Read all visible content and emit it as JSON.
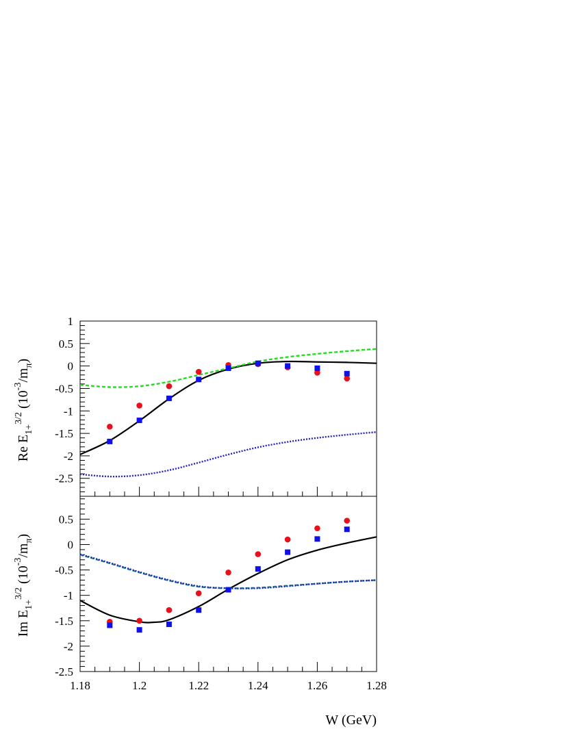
{
  "chart_data": [
    {
      "type": "scatter",
      "panel": "top",
      "ylabel": {
        "main": "Re E",
        "sub": "1+",
        "sup": "3/2",
        "unit_pre": " (10",
        "unit_sup": "-3",
        "unit_post": "/m",
        "unit_sub": "π",
        "unit_close": ")"
      },
      "xlim": [
        1.18,
        1.28
      ],
      "ylim": [
        -2.9,
        1.0
      ],
      "yticks": [
        1,
        0.5,
        0,
        -0.5,
        -1,
        -1.5,
        -2,
        -2.5
      ],
      "ytick_labels": [
        "1",
        "0.5",
        "0",
        "-0.5",
        "-1",
        "-1.5",
        "-2",
        "-2.5"
      ],
      "series": [
        {
          "marker": "circle",
          "color": "#e8101c",
          "x": [
            1.19,
            1.2,
            1.21,
            1.22,
            1.23,
            1.24,
            1.25,
            1.26,
            1.27
          ],
          "y": [
            -1.35,
            -0.88,
            -0.45,
            -0.13,
            0.02,
            0.04,
            -0.03,
            -0.15,
            -0.28
          ]
        },
        {
          "marker": "square",
          "color": "#1010e8",
          "x": [
            1.19,
            1.2,
            1.21,
            1.22,
            1.23,
            1.24,
            1.25,
            1.26,
            1.27
          ],
          "y": [
            -1.68,
            -1.21,
            -0.72,
            -0.3,
            -0.05,
            0.06,
            0.0,
            -0.05,
            -0.17
          ]
        },
        {
          "line": "solid",
          "color": "#000000",
          "x": [
            1.18,
            1.19,
            1.2,
            1.21,
            1.22,
            1.23,
            1.24,
            1.25,
            1.26,
            1.27,
            1.28
          ],
          "y": [
            -1.97,
            -1.66,
            -1.22,
            -0.73,
            -0.32,
            -0.07,
            0.06,
            0.1,
            0.09,
            0.08,
            0.06
          ]
        },
        {
          "line": "dashed",
          "color": "#22dd22",
          "x": [
            1.18,
            1.19,
            1.2,
            1.21,
            1.22,
            1.23,
            1.24,
            1.25,
            1.26,
            1.27,
            1.28
          ],
          "y": [
            -0.42,
            -0.47,
            -0.45,
            -0.35,
            -0.2,
            -0.05,
            0.1,
            0.2,
            0.27,
            0.33,
            0.38
          ]
        },
        {
          "line": "dotted",
          "color": "#2020c0",
          "x": [
            1.18,
            1.19,
            1.2,
            1.21,
            1.22,
            1.23,
            1.24,
            1.25,
            1.26,
            1.27,
            1.28
          ],
          "y": [
            -2.41,
            -2.46,
            -2.43,
            -2.32,
            -2.15,
            -1.97,
            -1.81,
            -1.69,
            -1.6,
            -1.53,
            -1.47
          ]
        }
      ]
    },
    {
      "type": "scatter",
      "panel": "bottom",
      "ylabel": {
        "main": "Im E",
        "sub": "1+",
        "sup": "3/2",
        "unit_pre": " (10",
        "unit_sup": "-3",
        "unit_post": "/m",
        "unit_sub": "π",
        "unit_close": ")"
      },
      "xlabel": "W (GeV)",
      "xlim": [
        1.18,
        1.28
      ],
      "ylim": [
        -2.5,
        0.95
      ],
      "xticks": [
        1.18,
        1.2,
        1.22,
        1.24,
        1.26,
        1.28
      ],
      "xtick_labels": [
        "1.18",
        "1.2",
        "1.22",
        "1.24",
        "1.26",
        "1.28"
      ],
      "yticks": [
        0.5,
        0,
        -0.5,
        -1,
        -1.5,
        -2,
        -2.5
      ],
      "ytick_labels": [
        "0.5",
        "0",
        "-0.5",
        "-1",
        "-1.5",
        "-2",
        "-2.5"
      ],
      "series": [
        {
          "marker": "circle",
          "color": "#e8101c",
          "x": [
            1.19,
            1.2,
            1.21,
            1.22,
            1.23,
            1.24,
            1.25,
            1.26,
            1.27
          ],
          "y": [
            -1.52,
            -1.5,
            -1.29,
            -0.96,
            -0.55,
            -0.19,
            0.1,
            0.32,
            0.47
          ]
        },
        {
          "marker": "square",
          "color": "#1010e8",
          "x": [
            1.19,
            1.2,
            1.21,
            1.22,
            1.23,
            1.24,
            1.25,
            1.26,
            1.27
          ],
          "y": [
            -1.59,
            -1.68,
            -1.57,
            -1.29,
            -0.89,
            -0.48,
            -0.15,
            0.11,
            0.3
          ]
        },
        {
          "line": "solid",
          "color": "#000000",
          "x": [
            1.18,
            1.19,
            1.2,
            1.205,
            1.21,
            1.22,
            1.23,
            1.24,
            1.25,
            1.26,
            1.27,
            1.28
          ],
          "y": [
            -1.1,
            -1.39,
            -1.52,
            -1.53,
            -1.48,
            -1.22,
            -0.88,
            -0.57,
            -0.3,
            -0.11,
            0.03,
            0.15
          ]
        },
        {
          "line": "dashed",
          "color": "#1a8a7a",
          "x": [
            1.18,
            1.19,
            1.2,
            1.21,
            1.22,
            1.23,
            1.24,
            1.25,
            1.26,
            1.27,
            1.28
          ],
          "y": [
            -0.2,
            -0.37,
            -0.55,
            -0.71,
            -0.83,
            -0.86,
            -0.85,
            -0.81,
            -0.77,
            -0.73,
            -0.7
          ]
        },
        {
          "line": "dotted",
          "color": "#2020c0",
          "x": [
            1.18,
            1.19,
            1.2,
            1.21,
            1.22,
            1.23,
            1.24,
            1.25,
            1.26,
            1.27,
            1.28
          ],
          "y": [
            -0.19,
            -0.36,
            -0.54,
            -0.7,
            -0.82,
            -0.86,
            -0.86,
            -0.82,
            -0.77,
            -0.73,
            -0.7
          ]
        }
      ]
    }
  ]
}
